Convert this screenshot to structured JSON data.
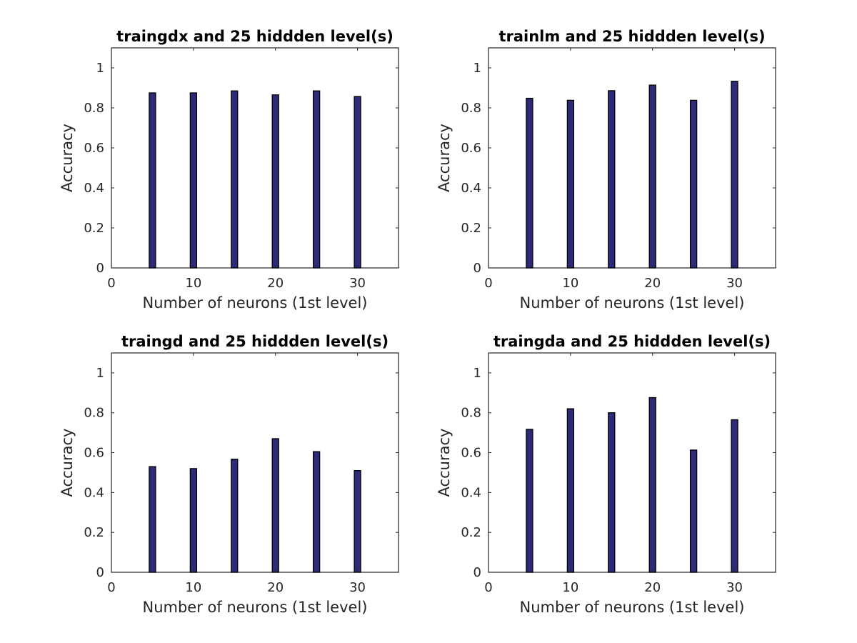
{
  "figure": {
    "background": "#ffffff",
    "bar_color": "#2e2a7a",
    "bar_edge": "#000000",
    "axis_color": "#262626"
  },
  "chart_data": [
    {
      "type": "bar",
      "title": "traingdx and 25 hiddden level(s)",
      "xlabel": "Number of neurons (1st level)",
      "ylabel": "Accuracy",
      "x": [
        5,
        10,
        15,
        20,
        25,
        30
      ],
      "values": [
        0.875,
        0.875,
        0.885,
        0.865,
        0.885,
        0.857
      ],
      "xlim": [
        0,
        35
      ],
      "ylim": [
        0,
        1.1
      ],
      "xticks": [
        0,
        10,
        20,
        30
      ],
      "yticks": [
        0,
        0.2,
        0.4,
        0.6,
        0.8,
        1
      ],
      "xticklabels": [
        "0",
        "10",
        "20",
        "30"
      ],
      "yticklabels": [
        "0",
        "0.2",
        "0.4",
        "0.6",
        "0.8",
        "1"
      ]
    },
    {
      "type": "bar",
      "title": "trainlm  and 25 hiddden level(s)",
      "xlabel": "Number of neurons (1st level)",
      "ylabel": "Accuracy",
      "x": [
        5,
        10,
        15,
        20,
        25,
        30
      ],
      "values": [
        0.848,
        0.838,
        0.886,
        0.914,
        0.838,
        0.933
      ],
      "xlim": [
        0,
        35
      ],
      "ylim": [
        0,
        1.1
      ],
      "xticks": [
        0,
        10,
        20,
        30
      ],
      "yticks": [
        0,
        0.2,
        0.4,
        0.6,
        0.8,
        1
      ],
      "xticklabels": [
        "0",
        "10",
        "20",
        "30"
      ],
      "yticklabels": [
        "0",
        "0.2",
        "0.4",
        "0.6",
        "0.8",
        "1"
      ]
    },
    {
      "type": "bar",
      "title": "traingd  and 25 hiddden level(s)",
      "xlabel": "Number of neurons (1st level)",
      "ylabel": "Accuracy",
      "x": [
        5,
        10,
        15,
        20,
        25,
        30
      ],
      "values": [
        0.53,
        0.52,
        0.567,
        0.67,
        0.605,
        0.51
      ],
      "xlim": [
        0,
        35
      ],
      "ylim": [
        0,
        1.1
      ],
      "xticks": [
        0,
        10,
        20,
        30
      ],
      "yticks": [
        0,
        0.2,
        0.4,
        0.6,
        0.8,
        1
      ],
      "xticklabels": [
        "0",
        "10",
        "20",
        "30"
      ],
      "yticklabels": [
        "0",
        "0.2",
        "0.4",
        "0.6",
        "0.8",
        "1"
      ]
    },
    {
      "type": "bar",
      "title": "traingda and 25 hiddden level(s)",
      "xlabel": "Number of neurons (1st level)",
      "ylabel": "Accuracy",
      "x": [
        5,
        10,
        15,
        20,
        25,
        30
      ],
      "values": [
        0.717,
        0.82,
        0.8,
        0.876,
        0.613,
        0.765
      ],
      "xlim": [
        0,
        35
      ],
      "ylim": [
        0,
        1.1
      ],
      "xticks": [
        0,
        10,
        20,
        30
      ],
      "yticks": [
        0,
        0.2,
        0.4,
        0.6,
        0.8,
        1
      ],
      "xticklabels": [
        "0",
        "10",
        "20",
        "30"
      ],
      "yticklabels": [
        "0",
        "0.2",
        "0.4",
        "0.6",
        "0.8",
        "1"
      ]
    }
  ]
}
